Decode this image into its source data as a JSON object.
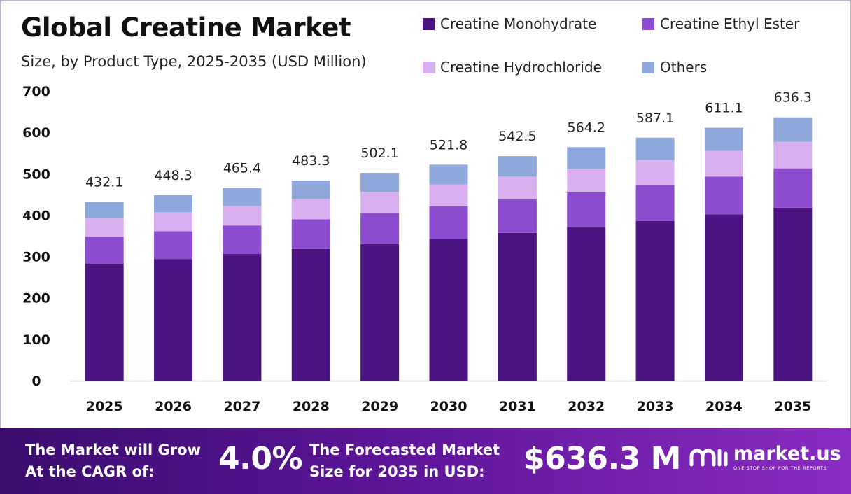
{
  "header": {
    "title": "Global Creatine Market",
    "subtitle": "Size, by Product Type, 2025-2035 (USD Million)"
  },
  "legend": [
    {
      "label": "Creatine Monohydrate",
      "color": "#4c1482"
    },
    {
      "label": "Creatine Ethyl Ester",
      "color": "#8d4ccf"
    },
    {
      "label": "Creatine Hydrochloride",
      "color": "#d9b0ef"
    },
    {
      "label": "Others",
      "color": "#8fa8dc"
    }
  ],
  "chart_data": {
    "type": "bar",
    "stacked": true,
    "categories": [
      "2025",
      "2026",
      "2027",
      "2028",
      "2029",
      "2030",
      "2031",
      "2032",
      "2033",
      "2034",
      "2035"
    ],
    "series": [
      {
        "name": "Creatine Monohydrate",
        "color": "#4c1482",
        "values": [
          283,
          294,
          306,
          318,
          330,
          343,
          357,
          371,
          386,
          402,
          418
        ]
      },
      {
        "name": "Creatine Ethyl Ester",
        "color": "#8d4ccf",
        "values": [
          65,
          67,
          69,
          72,
          75,
          78,
          81,
          84,
          87,
          91,
          95
        ]
      },
      {
        "name": "Creatine Hydrochloride",
        "color": "#d9b0ef",
        "values": [
          44,
          46,
          47,
          49,
          51,
          53,
          55,
          57,
          60,
          62,
          64
        ]
      },
      {
        "name": "Others",
        "color": "#8fa8dc",
        "values": [
          40.1,
          41.3,
          43.4,
          44.3,
          46.1,
          47.8,
          49.5,
          52.2,
          54.1,
          56.1,
          59.3
        ]
      }
    ],
    "totals": [
      "432.1",
      "448.3",
      "465.4",
      "483.3",
      "502.1",
      "521.8",
      "542.5",
      "564.2",
      "587.1",
      "611.1",
      "636.3"
    ],
    "yticks": [
      "0",
      "100",
      "200",
      "300",
      "400",
      "500",
      "600",
      "700"
    ],
    "ylim": [
      0,
      700
    ],
    "grid": false,
    "legend_position": "top-right"
  },
  "footer": {
    "cagr_text_line1": "The Market will Grow",
    "cagr_text_line2": "At the CAGR of:",
    "cagr_value": "4.0%",
    "forecast_text_line1": "The Forecasted Market",
    "forecast_text_line2": "Size for 2035 in USD:",
    "forecast_value": "$636.3 M",
    "brand_name": "market.us",
    "brand_tagline": "ONE STOP SHOP FOR THE REPORTS"
  }
}
